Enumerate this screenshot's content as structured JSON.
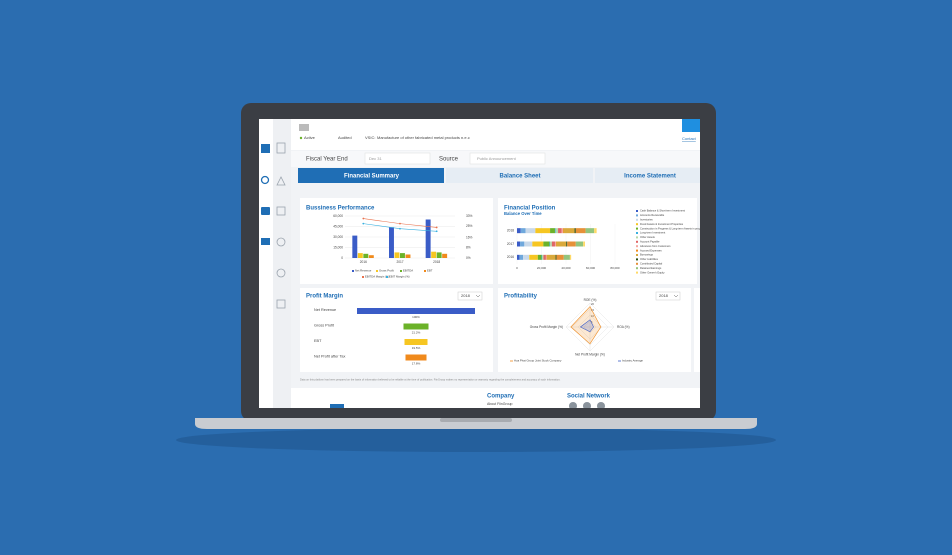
{
  "header": {
    "status": "Active",
    "audit": "Audited",
    "vsic_label": "VSIC:",
    "vsic": "Manufacture of other fabricated metal products n.e.c",
    "contact": "Contact"
  },
  "filters": {
    "fiscal_label": "Fiscal Year End",
    "fiscal_value": "Dec 31",
    "source_label": "Source",
    "source_value": "Public Announcement"
  },
  "tabs": [
    "Financial Summary",
    "Balance Sheet",
    "Income Statement"
  ],
  "chart_data": [
    {
      "type": "combo",
      "title": "Bussiness Performance",
      "categories": [
        "2016",
        "2017",
        "2018"
      ],
      "ylim": [
        0,
        60000
      ],
      "yticks": [
        0,
        {
          "value": 15000,
          "label": "15,000"
        },
        {
          "value": 30000,
          "label": "30,000"
        },
        {
          "value": 45000,
          "label": "45,000"
        },
        {
          "value": 60000,
          "label": "60,000"
        }
      ],
      "y2lim": [
        0,
        33
      ],
      "y2ticks": [
        {
          "value": 0,
          "label": "0%"
        },
        {
          "value": 8,
          "label": "8%"
        },
        {
          "value": 16,
          "label": "16%"
        },
        {
          "value": 25,
          "label": "25%"
        },
        {
          "value": 33,
          "label": "33%"
        }
      ],
      "series": [
        {
          "name": "Net Revenue",
          "color": "#3a5cc7",
          "values": [
            32000,
            44000,
            55000
          ]
        },
        {
          "name": "Gross Profit",
          "color": "#f6c622",
          "values": [
            7000,
            8000,
            9000
          ]
        },
        {
          "name": "EBITDA",
          "color": "#6bb229",
          "values": [
            6000,
            7000,
            8000
          ]
        },
        {
          "name": "EBT",
          "color": "#f08a1c",
          "values": [
            4000,
            5000,
            6000
          ]
        },
        {
          "name": "EBITDA Margin (%)",
          "color": "#e9714c",
          "type": "line",
          "axis": "y2",
          "values": [
            31,
            27,
            24
          ]
        },
        {
          "name": "EBIT Margin (%)",
          "color": "#38b0e0",
          "type": "line",
          "axis": "y2",
          "values": [
            27,
            23,
            21
          ]
        }
      ]
    },
    {
      "type": "hbar",
      "stacked": true,
      "title": "Financial Position",
      "subtitle": "Balance Over Time",
      "categories": [
        "2018",
        "2017",
        "2016"
      ],
      "xlim": [
        0,
        80000
      ],
      "xticks": [
        0,
        {
          "value": 20000,
          "label": "20,000"
        },
        {
          "value": 40000,
          "label": "40,000"
        },
        {
          "value": 60000,
          "label": "60,000"
        },
        {
          "value": 80000,
          "label": "80,000"
        }
      ],
      "series": [
        {
          "name": "Cash Balance & Short-term Investment",
          "color": "#3a5cc7",
          "values": [
            3000,
            2500,
            2000
          ]
        },
        {
          "name": "Accounts Receivable",
          "color": "#6fa8dc",
          "values": [
            4000,
            3500,
            3000
          ]
        },
        {
          "name": "Inventories",
          "color": "#c9d9ea",
          "values": [
            8000,
            6500,
            5000
          ]
        },
        {
          "name": "Fixed Assets & Investment Properties",
          "color": "#f6c622",
          "values": [
            12000,
            9000,
            7000
          ]
        },
        {
          "name": "Construction in Progress & Long-term Assets in progress",
          "color": "#6bb229",
          "values": [
            4000,
            5000,
            3000
          ]
        },
        {
          "name": "Long-term Investment",
          "color": "#38b0e0",
          "values": [
            500,
            500,
            400
          ]
        },
        {
          "name": "Other Assets",
          "color": "#b6d7a8",
          "values": [
            2000,
            1500,
            1200
          ]
        },
        {
          "name": "Account Payable",
          "color": "#e06666",
          "values": [
            3000,
            2500,
            2000
          ]
        },
        {
          "name": "Advances from Customers",
          "color": "#f4a7a0",
          "values": [
            1000,
            800,
            600
          ]
        },
        {
          "name": "Accrued Expenses",
          "color": "#f08a1c",
          "values": [
            500,
            400,
            300
          ]
        },
        {
          "name": "Borrowings",
          "color": "#d9a93b",
          "values": [
            9000,
            8000,
            7000
          ]
        },
        {
          "name": "Other Liabilities",
          "color": "#274e13",
          "values": [
            1000,
            800,
            700
          ]
        },
        {
          "name": "Contributed Capital",
          "color": "#e69138",
          "values": [
            8000,
            7000,
            6000
          ]
        },
        {
          "name": "Retained Earnings",
          "color": "#93c47d",
          "values": [
            7000,
            6000,
            5000
          ]
        },
        {
          "name": "Other Owner's Equity",
          "color": "#ffd966",
          "values": [
            2000,
            1500,
            1000
          ]
        }
      ]
    },
    {
      "type": "funnel",
      "title": "Profit Margin",
      "selector": "2018",
      "categories": [
        "Net Revenue",
        "Gross Profit",
        "EBT",
        "Net Profit after Tax"
      ],
      "values": [
        100,
        21.2,
        19.5,
        17.8
      ],
      "value_labels": [
        "100%",
        "21.2%",
        "19.5%",
        "17.8%"
      ],
      "colors": [
        "#3a5cc7",
        "#6bb229",
        "#f6c622",
        "#f08a1c"
      ],
      "xlim": [
        0,
        100
      ]
    },
    {
      "type": "radar",
      "title": "Profitability",
      "selector": "2018",
      "categories": [
        "ROE (%)",
        "ROA (%)",
        "Net Profit Margin (%)",
        "Gross Profit Margin (%)"
      ],
      "rlim": [
        0,
        20
      ],
      "rticks": [
        5,
        10,
        15,
        20
      ],
      "series": [
        {
          "name": "Hoa Phat Group Joint Stock Company",
          "color": "#f08a1c",
          "values": [
            17,
            9,
            14,
            16
          ]
        },
        {
          "name": "Industry Average",
          "color": "#3a5cc7",
          "values": [
            6,
            3,
            4,
            8
          ]
        }
      ]
    }
  ],
  "footer": {
    "disclaimer": "Data on this platform has been prepared on the basis of information believed to be reliable at the time of publication. FiinGroup makes no representation or warranty regarding the completeness and accuracy of such information.",
    "company": "Company",
    "about": "About FiinGroup",
    "social": "Social Network"
  }
}
